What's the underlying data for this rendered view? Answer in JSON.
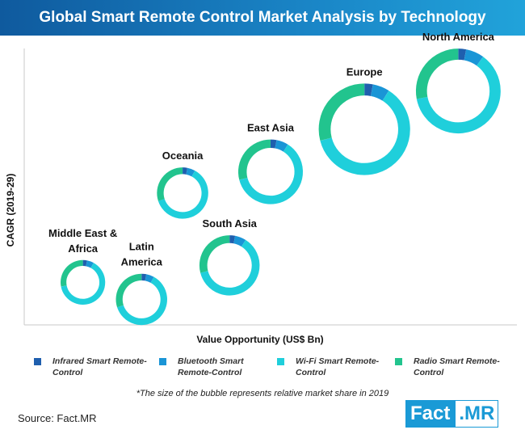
{
  "title": "Global Smart Remote Control Market Analysis by Technology",
  "footnote": "*The size of the bubble represents  relative market share in 2019",
  "source": "Source: Fact.MR",
  "logo": {
    "left": "Fact",
    "right": ".MR"
  },
  "colors": {
    "infrared": "#1f5fae",
    "bluetooth": "#1a95d6",
    "wifi": "#1fcfdb",
    "radio": "#22c48e"
  },
  "chart_data": {
    "type": "bubble-donut",
    "title": "Global Smart Remote Control Market Analysis by Technology",
    "xlabel": "Value Opportunity (US$ Bn)",
    "ylabel": "CAGR (2019-29)",
    "segments": [
      {
        "name": "Infrared Smart Remote-Control",
        "color": "#1f5fae"
      },
      {
        "name": "Bluetooth Smart Remote-Control",
        "color": "#1a95d6"
      },
      {
        "name": "Wi-Fi Smart Remote-Control",
        "color": "#1fcfdb"
      },
      {
        "name": "Radio Smart Remote-Control",
        "color": "#22c48e"
      }
    ],
    "bubbles": [
      {
        "region": "Middle East &\nAfrica",
        "x": 1.0,
        "y": 1.0,
        "size": 1.0,
        "shares": [
          0.03,
          0.05,
          0.64,
          0.28
        ]
      },
      {
        "region": "Latin\nAmerica",
        "x": 2.0,
        "y": 0.6,
        "size": 1.15,
        "shares": [
          0.03,
          0.05,
          0.62,
          0.3
        ]
      },
      {
        "region": "Oceania",
        "x": 2.7,
        "y": 3.1,
        "size": 1.15,
        "shares": [
          0.03,
          0.05,
          0.62,
          0.3
        ]
      },
      {
        "region": "South Asia",
        "x": 3.5,
        "y": 1.4,
        "size": 1.35,
        "shares": [
          0.03,
          0.06,
          0.62,
          0.29
        ]
      },
      {
        "region": "East Asia",
        "x": 4.2,
        "y": 3.6,
        "size": 1.45,
        "shares": [
          0.03,
          0.06,
          0.62,
          0.29
        ]
      },
      {
        "region": "Europe",
        "x": 5.8,
        "y": 4.6,
        "size": 2.05,
        "shares": [
          0.03,
          0.06,
          0.62,
          0.29
        ]
      },
      {
        "region": "North America",
        "x": 7.4,
        "y": 5.5,
        "size": 1.9,
        "shares": [
          0.03,
          0.07,
          0.62,
          0.28
        ]
      }
    ]
  }
}
